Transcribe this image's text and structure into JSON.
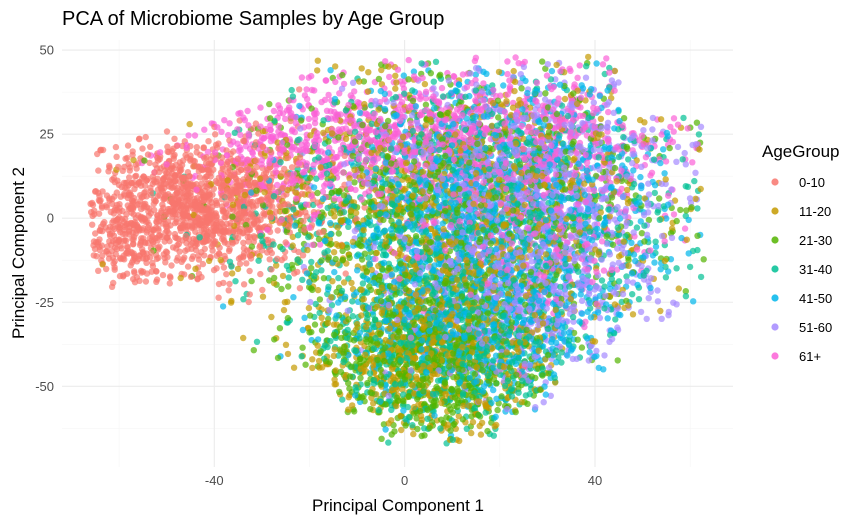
{
  "chart_data": {
    "type": "scatter",
    "title": "PCA of Microbiome Samples by Age Group",
    "xlabel": "Principal Component 1",
    "ylabel": "Principal Component 2",
    "xlim": [
      -72,
      69
    ],
    "ylim": [
      -74,
      53
    ],
    "x_ticks": [
      -40,
      0,
      40
    ],
    "y_ticks": [
      50,
      25,
      0,
      -25,
      -50
    ],
    "grid": true,
    "legend": {
      "title": "AgeGroup",
      "placement": "right"
    },
    "point_opacity": 0.7,
    "approx_points_per_group": 1400,
    "series": [
      {
        "name": "0-10",
        "color": "#F8766D",
        "clusters": [
          {
            "cx": -42,
            "cy": 4,
            "sx": 12,
            "sy": 10,
            "weight": 0.85
          },
          {
            "cx": -58,
            "cy": -6,
            "sx": 6,
            "sy": 7,
            "weight": 0.15
          }
        ]
      },
      {
        "name": "11-20",
        "color": "#C49A00",
        "clusters": [
          {
            "cx": 10,
            "cy": 5,
            "sx": 22,
            "sy": 20,
            "weight": 0.6
          },
          {
            "cx": 5,
            "cy": -40,
            "sx": 14,
            "sy": 12,
            "weight": 0.4
          }
        ]
      },
      {
        "name": "21-30",
        "color": "#53B400",
        "clusters": [
          {
            "cx": 12,
            "cy": 5,
            "sx": 22,
            "sy": 20,
            "weight": 0.55
          },
          {
            "cx": 5,
            "cy": -42,
            "sx": 13,
            "sy": 12,
            "weight": 0.45
          }
        ]
      },
      {
        "name": "31-40",
        "color": "#00C094",
        "clusters": [
          {
            "cx": 15,
            "cy": 3,
            "sx": 22,
            "sy": 20,
            "weight": 0.6
          },
          {
            "cx": 10,
            "cy": -38,
            "sx": 14,
            "sy": 12,
            "weight": 0.4
          }
        ]
      },
      {
        "name": "41-50",
        "color": "#00B6EB",
        "clusters": [
          {
            "cx": 20,
            "cy": 5,
            "sx": 18,
            "sy": 20,
            "weight": 0.65
          },
          {
            "cx": 15,
            "cy": -30,
            "sx": 14,
            "sy": 14,
            "weight": 0.35
          }
        ]
      },
      {
        "name": "51-60",
        "color": "#A58AFF",
        "clusters": [
          {
            "cx": 25,
            "cy": 8,
            "sx": 16,
            "sy": 18,
            "weight": 0.7
          },
          {
            "cx": 25,
            "cy": -25,
            "sx": 12,
            "sy": 12,
            "weight": 0.3
          }
        ]
      },
      {
        "name": "61+",
        "color": "#FB61D7",
        "clusters": [
          {
            "cx": 10,
            "cy": 25,
            "sx": 24,
            "sy": 10,
            "weight": 0.55
          },
          {
            "cx": 25,
            "cy": 0,
            "sx": 15,
            "sy": 18,
            "weight": 0.25
          },
          {
            "cx": -20,
            "cy": 20,
            "sx": 12,
            "sy": 10,
            "weight": 0.2
          }
        ]
      }
    ]
  }
}
